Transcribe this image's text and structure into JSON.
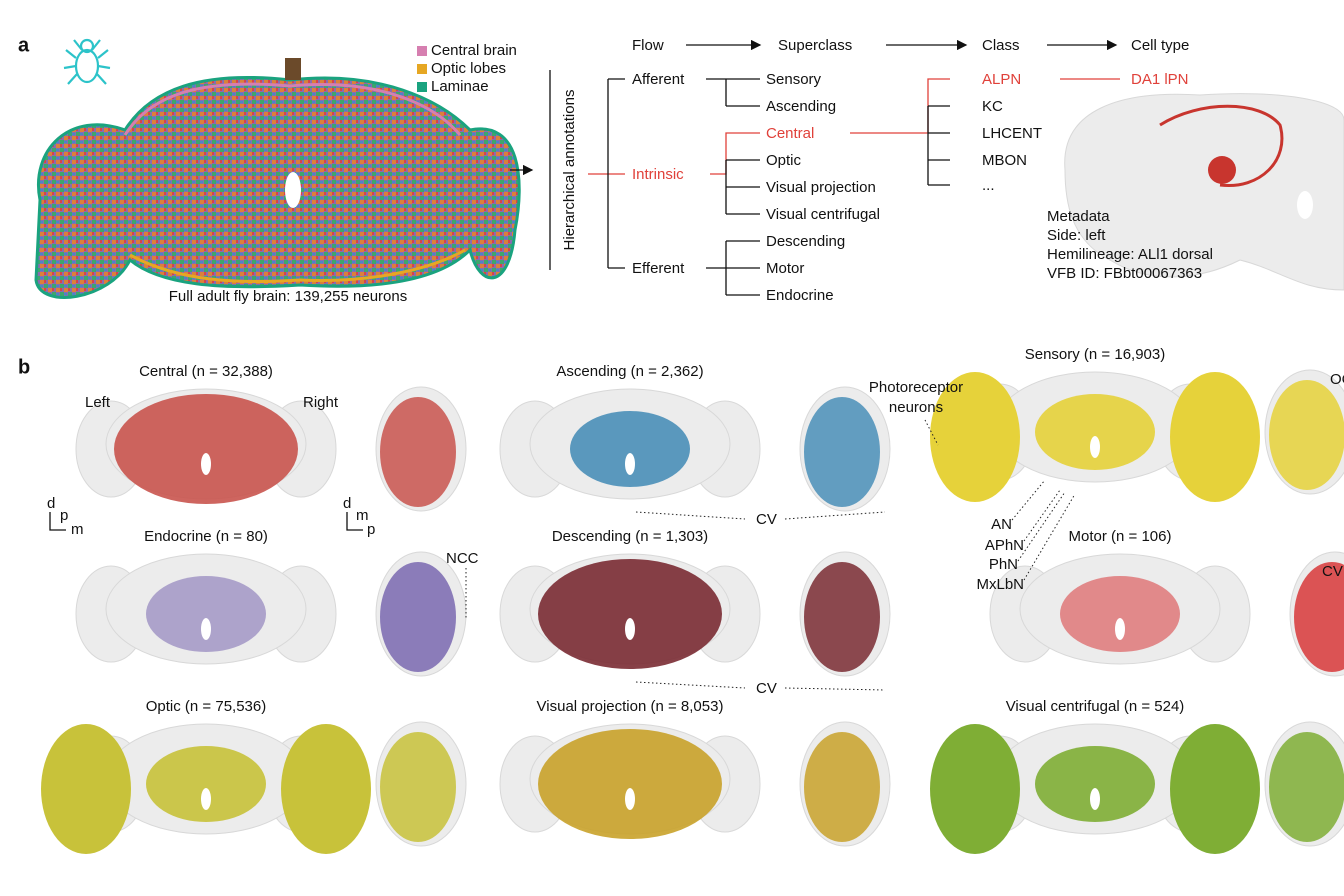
{
  "panel_a": {
    "label": "a",
    "legend": [
      {
        "name": "Central brain",
        "color": "#d67fb0"
      },
      {
        "name": "Optic lobes",
        "color": "#e6a723"
      },
      {
        "name": "Laminae",
        "color": "#1aa37f"
      }
    ],
    "caption": "Full adult fly brain: 139,255 neurons",
    "axis_label": "Hierarchical annotations",
    "headers": [
      "Flow",
      "Superclass",
      "Class",
      "Cell type"
    ],
    "flow": [
      "Afferent",
      "Intrinsic",
      "Efferent"
    ],
    "superclass": [
      "Sensory",
      "Ascending",
      "Central",
      "Optic",
      "Visual projection",
      "Visual centrifugal",
      "Descending",
      "Motor",
      "Endocrine"
    ],
    "class": [
      "ALPN",
      "KC",
      "LHCENT",
      "MBON",
      "..."
    ],
    "cell_type": "DA1 lPN",
    "metadata": [
      "Metadata",
      "Side: left",
      "Hemilineage: ALl1 dorsal",
      "VFB ID: FBbt00067363"
    ]
  },
  "panel_b": {
    "label": "b",
    "panels": [
      "Central (n = 32,388)",
      "Ascending (n = 2,362)",
      "Sensory (n = 16,903)",
      "Endocrine (n = 80)",
      "Descending (n = 1,303)",
      "Motor (n = 106)",
      "Optic (n = 75,536)",
      "Visual projection (n = 8,053)",
      "Visual centrifugal (n = 524)"
    ],
    "annotations": {
      "left": "Left",
      "right": "Right",
      "axes_front": [
        "d",
        "p",
        "m"
      ],
      "axes_side": [
        "d",
        "m",
        "p"
      ],
      "ncc": "NCC",
      "cv": "CV",
      "photoreceptor": "Photoreceptor neurons",
      "nerves": [
        "AN",
        "APhN",
        "PhN",
        "MxLbN"
      ],
      "oc": "OC"
    }
  }
}
